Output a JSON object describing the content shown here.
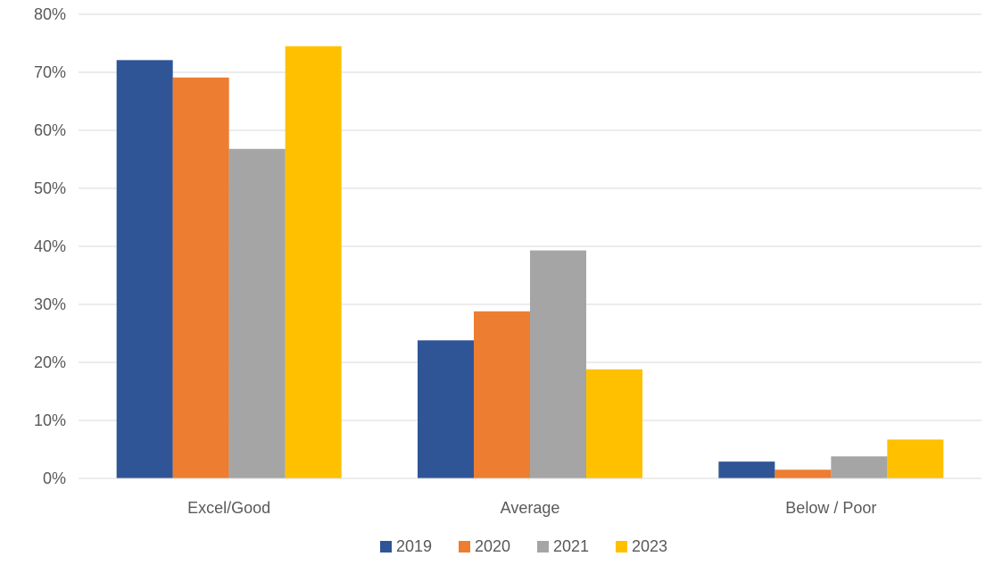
{
  "chart_data": {
    "type": "bar",
    "title": "",
    "xlabel": "",
    "ylabel": "",
    "categories": [
      "Excel/Good",
      "Average",
      "Below / Poor"
    ],
    "series": [
      {
        "name": "2019",
        "color": "#2F5597",
        "values": [
          72.1,
          23.8,
          2.9
        ]
      },
      {
        "name": "2020",
        "color": "#ED7D31",
        "values": [
          69.1,
          28.8,
          1.5
        ]
      },
      {
        "name": "2021",
        "color": "#A5A5A5",
        "values": [
          56.8,
          39.3,
          3.8
        ]
      },
      {
        "name": "2023",
        "color": "#FFC000",
        "values": [
          74.5,
          18.8,
          6.7
        ]
      }
    ],
    "ylim": [
      0,
      80
    ],
    "yticks": [
      "0%",
      "10%",
      "20%",
      "30%",
      "40%",
      "50%",
      "60%",
      "70%",
      "80%"
    ],
    "grid": true,
    "legend": "bottom-center"
  }
}
